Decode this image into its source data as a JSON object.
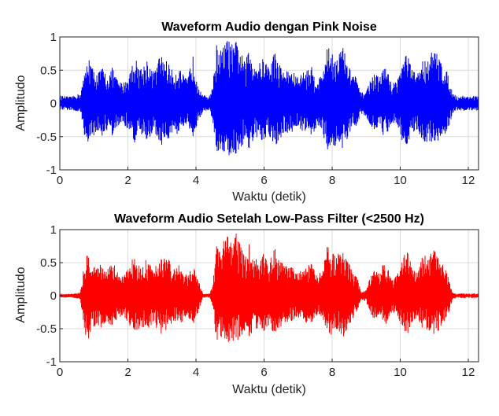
{
  "chart_data": [
    {
      "type": "line",
      "title": "Waveform Audio dengan Pink Noise",
      "xlabel": "Waktu (detik)",
      "ylabel": "Amplitudo",
      "xlim": [
        0,
        12.3
      ],
      "ylim": [
        -1,
        1
      ],
      "grid": true,
      "x_ticks": [
        0,
        2,
        4,
        6,
        8,
        10,
        12
      ],
      "y_ticks": [
        -1,
        -0.5,
        0,
        0.5,
        1
      ],
      "y_tick_labels": [
        "-1",
        "-0.5",
        "0",
        "0.5",
        "1"
      ],
      "color": "#0000ff",
      "noise_floor": 0.1,
      "envelope": {
        "x": [
          0,
          0.3,
          0.6,
          0.75,
          0.85,
          0.95,
          1.1,
          1.25,
          1.4,
          1.55,
          1.7,
          1.85,
          2.0,
          2.2,
          2.35,
          2.45,
          2.55,
          2.7,
          2.8,
          2.95,
          3.05,
          3.2,
          3.35,
          3.5,
          3.6,
          3.75,
          3.9,
          4.05,
          4.2,
          4.4,
          4.5,
          4.6,
          4.75,
          4.9,
          5.0,
          5.1,
          5.2,
          5.3,
          5.45,
          5.55,
          5.7,
          5.85,
          6.0,
          6.15,
          6.3,
          6.45,
          6.6,
          6.8,
          7.0,
          7.2,
          7.4,
          7.55,
          7.7,
          7.85,
          8.0,
          8.15,
          8.3,
          8.45,
          8.55,
          8.7,
          8.85,
          9.0,
          9.2,
          9.4,
          9.55,
          9.65,
          9.75,
          9.9,
          10.05,
          10.2,
          10.35,
          10.5,
          10.65,
          10.8,
          10.95,
          11.1,
          11.25,
          11.4,
          11.55,
          11.7,
          11.85,
          12.0,
          12.15,
          12.3
        ],
        "upper": [
          0.12,
          0.1,
          0.15,
          0.5,
          0.75,
          0.55,
          0.45,
          0.55,
          0.4,
          0.55,
          0.35,
          0.3,
          0.4,
          0.7,
          0.55,
          0.55,
          0.7,
          0.5,
          0.5,
          0.75,
          0.7,
          0.6,
          0.45,
          0.55,
          0.45,
          0.35,
          0.75,
          0.35,
          0.12,
          0.12,
          0.3,
          0.9,
          0.8,
          0.97,
          0.95,
          0.85,
          0.97,
          0.8,
          0.6,
          0.85,
          0.65,
          0.6,
          0.7,
          0.55,
          0.8,
          0.6,
          0.5,
          0.5,
          0.4,
          0.5,
          0.55,
          0.35,
          0.45,
          0.85,
          0.8,
          0.7,
          0.9,
          0.6,
          0.5,
          0.4,
          0.15,
          0.2,
          0.45,
          0.4,
          0.6,
          0.45,
          0.3,
          0.35,
          0.6,
          0.8,
          0.5,
          0.45,
          0.65,
          0.7,
          0.8,
          0.75,
          0.6,
          0.45,
          0.15,
          0.1,
          0.12,
          0.1,
          0.12,
          0.1
        ],
        "lower": [
          -0.1,
          -0.1,
          -0.15,
          -0.55,
          -0.7,
          -0.5,
          -0.45,
          -0.5,
          -0.4,
          -0.5,
          -0.35,
          -0.3,
          -0.4,
          -0.6,
          -0.5,
          -0.5,
          -0.6,
          -0.45,
          -0.45,
          -0.65,
          -0.6,
          -0.55,
          -0.4,
          -0.5,
          -0.4,
          -0.3,
          -0.6,
          -0.3,
          -0.12,
          -0.1,
          -0.3,
          -0.75,
          -0.7,
          -0.8,
          -0.8,
          -0.75,
          -0.8,
          -0.7,
          -0.55,
          -0.7,
          -0.55,
          -0.55,
          -0.6,
          -0.5,
          -0.7,
          -0.55,
          -0.45,
          -0.45,
          -0.35,
          -0.45,
          -0.5,
          -0.35,
          -0.4,
          -0.7,
          -0.7,
          -0.6,
          -0.75,
          -0.55,
          -0.45,
          -0.35,
          -0.15,
          -0.2,
          -0.4,
          -0.35,
          -0.55,
          -0.4,
          -0.3,
          -0.3,
          -0.55,
          -0.65,
          -0.45,
          -0.4,
          -0.55,
          -0.6,
          -0.65,
          -0.6,
          -0.5,
          -0.4,
          -0.15,
          -0.1,
          -0.12,
          -0.1,
          -0.12,
          -0.1
        ]
      }
    },
    {
      "type": "line",
      "title": "Waveform Audio Setelah Low-Pass Filter (<2500 Hz)",
      "xlabel": "Waktu (detik)",
      "ylabel": "Amplitudo",
      "xlim": [
        0,
        12.3
      ],
      "ylim": [
        -1,
        1
      ],
      "grid": true,
      "x_ticks": [
        0,
        2,
        4,
        6,
        8,
        10,
        12
      ],
      "y_ticks": [
        -1,
        -0.5,
        0,
        0.5,
        1
      ],
      "y_tick_labels": [
        "-1",
        "-0.5",
        "0",
        "0.5",
        "1"
      ],
      "color": "#ff0000",
      "noise_floor": 0.03,
      "envelope": {
        "x": [
          0,
          0.3,
          0.6,
          0.75,
          0.85,
          0.95,
          1.1,
          1.25,
          1.4,
          1.55,
          1.7,
          1.85,
          2.0,
          2.2,
          2.35,
          2.45,
          2.55,
          2.7,
          2.8,
          2.95,
          3.05,
          3.2,
          3.35,
          3.5,
          3.6,
          3.75,
          3.9,
          4.05,
          4.2,
          4.4,
          4.5,
          4.6,
          4.75,
          4.9,
          5.0,
          5.1,
          5.2,
          5.3,
          5.45,
          5.55,
          5.7,
          5.85,
          6.0,
          6.15,
          6.3,
          6.45,
          6.6,
          6.8,
          7.0,
          7.2,
          7.4,
          7.55,
          7.7,
          7.85,
          8.0,
          8.15,
          8.3,
          8.45,
          8.55,
          8.7,
          8.85,
          9.0,
          9.2,
          9.4,
          9.55,
          9.65,
          9.75,
          9.9,
          10.05,
          10.2,
          10.35,
          10.5,
          10.65,
          10.8,
          10.95,
          11.1,
          11.25,
          11.4,
          11.55,
          11.7,
          11.85,
          12.0,
          12.15,
          12.3
        ],
        "upper": [
          0.03,
          0.03,
          0.05,
          0.6,
          0.7,
          0.5,
          0.45,
          0.5,
          0.4,
          0.55,
          0.35,
          0.3,
          0.4,
          0.65,
          0.5,
          0.5,
          0.6,
          0.45,
          0.45,
          0.65,
          0.6,
          0.55,
          0.4,
          0.5,
          0.4,
          0.3,
          0.45,
          0.3,
          0.03,
          0.03,
          0.2,
          0.8,
          0.75,
          0.95,
          0.9,
          0.8,
          1.0,
          0.75,
          0.6,
          0.8,
          0.6,
          0.55,
          0.65,
          0.5,
          0.75,
          0.55,
          0.45,
          0.45,
          0.35,
          0.45,
          0.5,
          0.3,
          0.4,
          0.75,
          0.7,
          0.6,
          0.8,
          0.55,
          0.45,
          0.35,
          0.05,
          0.1,
          0.4,
          0.35,
          0.55,
          0.4,
          0.25,
          0.3,
          0.55,
          0.7,
          0.45,
          0.4,
          0.6,
          0.65,
          0.7,
          0.65,
          0.5,
          0.3,
          0.05,
          0.03,
          0.04,
          0.03,
          0.04,
          0.03
        ],
        "lower": [
          -0.03,
          -0.03,
          -0.05,
          -0.6,
          -0.65,
          -0.5,
          -0.45,
          -0.5,
          -0.4,
          -0.5,
          -0.35,
          -0.3,
          -0.4,
          -0.6,
          -0.5,
          -0.5,
          -0.55,
          -0.45,
          -0.45,
          -0.6,
          -0.55,
          -0.5,
          -0.4,
          -0.45,
          -0.4,
          -0.3,
          -0.45,
          -0.3,
          -0.03,
          -0.03,
          -0.2,
          -0.7,
          -0.65,
          -0.75,
          -0.75,
          -0.7,
          -0.75,
          -0.65,
          -0.5,
          -0.65,
          -0.5,
          -0.5,
          -0.55,
          -0.45,
          -0.6,
          -0.5,
          -0.4,
          -0.4,
          -0.35,
          -0.4,
          -0.45,
          -0.3,
          -0.35,
          -0.6,
          -0.6,
          -0.55,
          -0.65,
          -0.5,
          -0.4,
          -0.3,
          -0.05,
          -0.1,
          -0.35,
          -0.3,
          -0.5,
          -0.35,
          -0.25,
          -0.3,
          -0.5,
          -0.6,
          -0.4,
          -0.35,
          -0.5,
          -0.55,
          -0.6,
          -0.55,
          -0.45,
          -0.3,
          -0.05,
          -0.03,
          -0.04,
          -0.03,
          -0.04,
          -0.03
        ]
      }
    }
  ]
}
